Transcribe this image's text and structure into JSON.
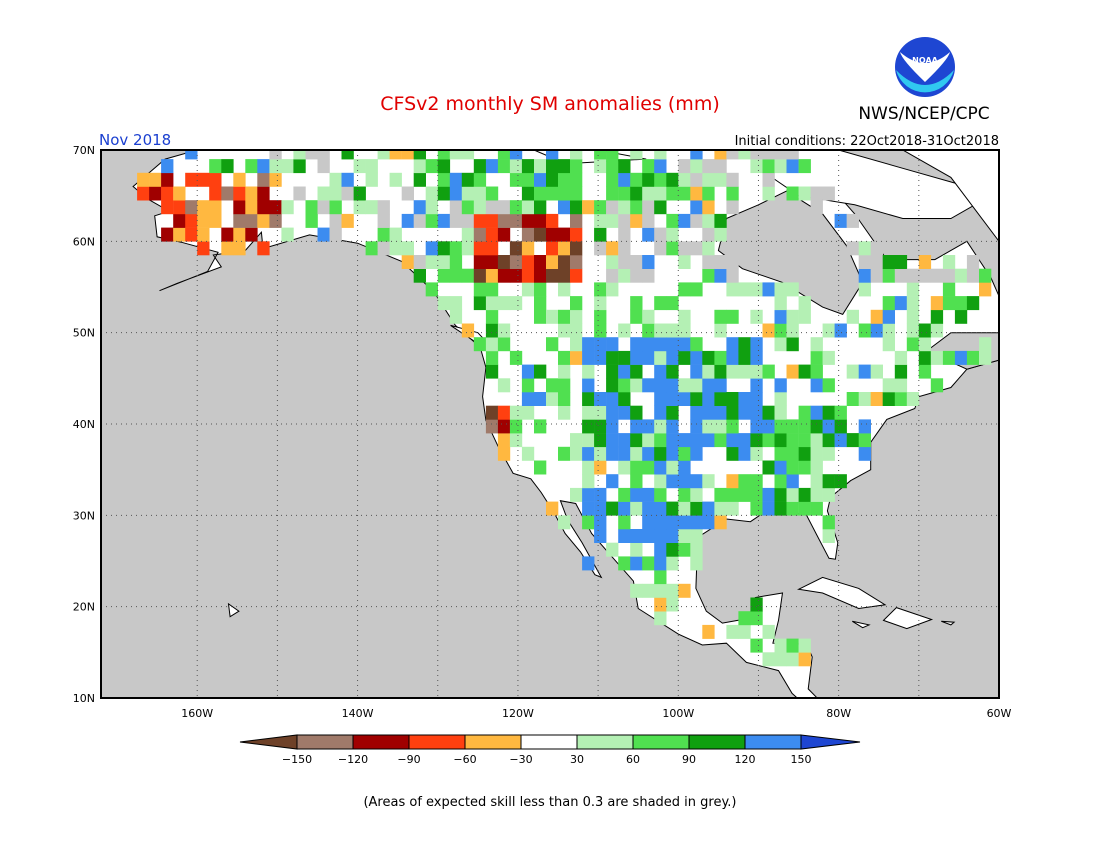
{
  "header": {
    "title": "CFSv2 monthly SM anomalies (mm)",
    "agency": "NWS/NCEP/CPC",
    "logo_text": "NOAA",
    "month": "Nov 2018",
    "initial_conditions": "Initial conditions: 22Oct2018-31Oct2018"
  },
  "map": {
    "projection": "equirectangular",
    "lon_range": [
      -172,
      -60
    ],
    "lat_range": [
      10,
      70
    ],
    "ocean_color": "#c8c8c8",
    "land_color": "#ffffff",
    "gridlines": "dotted",
    "lat_labels": [
      "70N",
      "60N",
      "50N",
      "40N",
      "30N",
      "20N",
      "10N"
    ],
    "lon_labels": [
      "160W",
      "140W",
      "120W",
      "100W",
      "80W",
      "60W"
    ]
  },
  "legend": {
    "labels": [
      "−150",
      "−120",
      "−90",
      "−60",
      "−30",
      "30",
      "60",
      "90",
      "120",
      "150"
    ],
    "colors": [
      "#6e4128",
      "#a07a6a",
      "#a00000",
      "#ff4010",
      "#ffb840",
      "#ffffff",
      "#b4f0b4",
      "#50e050",
      "#10a010",
      "#3c8cf0",
      "#1e46d2"
    ]
  },
  "footer": {
    "note": "(Areas of expected skill less than 0.3 are shaded in grey.)"
  },
  "anomaly_regions": [
    {
      "name": "alaska-west-mixed-dry",
      "lon": [
        -168,
        -150
      ],
      "lat": [
        58,
        68
      ],
      "class": "mixed-dry"
    },
    {
      "name": "yukon-bc-dry",
      "lon": [
        -126,
        -112
      ],
      "lat": [
        56,
        63
      ],
      "class": "dry"
    },
    {
      "name": "canada-north-wet",
      "lon": [
        -132,
        -100
      ],
      "lat": [
        64,
        70
      ],
      "class": "wet"
    },
    {
      "name": "california-dry",
      "lon": [
        -124,
        -121
      ],
      "lat": [
        37,
        42
      ],
      "class": "dry"
    },
    {
      "name": "great-plains-wet",
      "lon": [
        -112,
        -90
      ],
      "lat": [
        36,
        49
      ],
      "class": "very-wet"
    },
    {
      "name": "texas-mexico-wet",
      "lon": [
        -112,
        -96
      ],
      "lat": [
        24,
        34
      ],
      "class": "very-wet"
    },
    {
      "name": "southeast-wet",
      "lon": [
        -92,
        -76
      ],
      "lat": [
        29,
        40
      ],
      "class": "wet"
    },
    {
      "name": "canada-south-moist",
      "lon": [
        -122,
        -90
      ],
      "lat": [
        49,
        56
      ],
      "class": "moist"
    }
  ]
}
